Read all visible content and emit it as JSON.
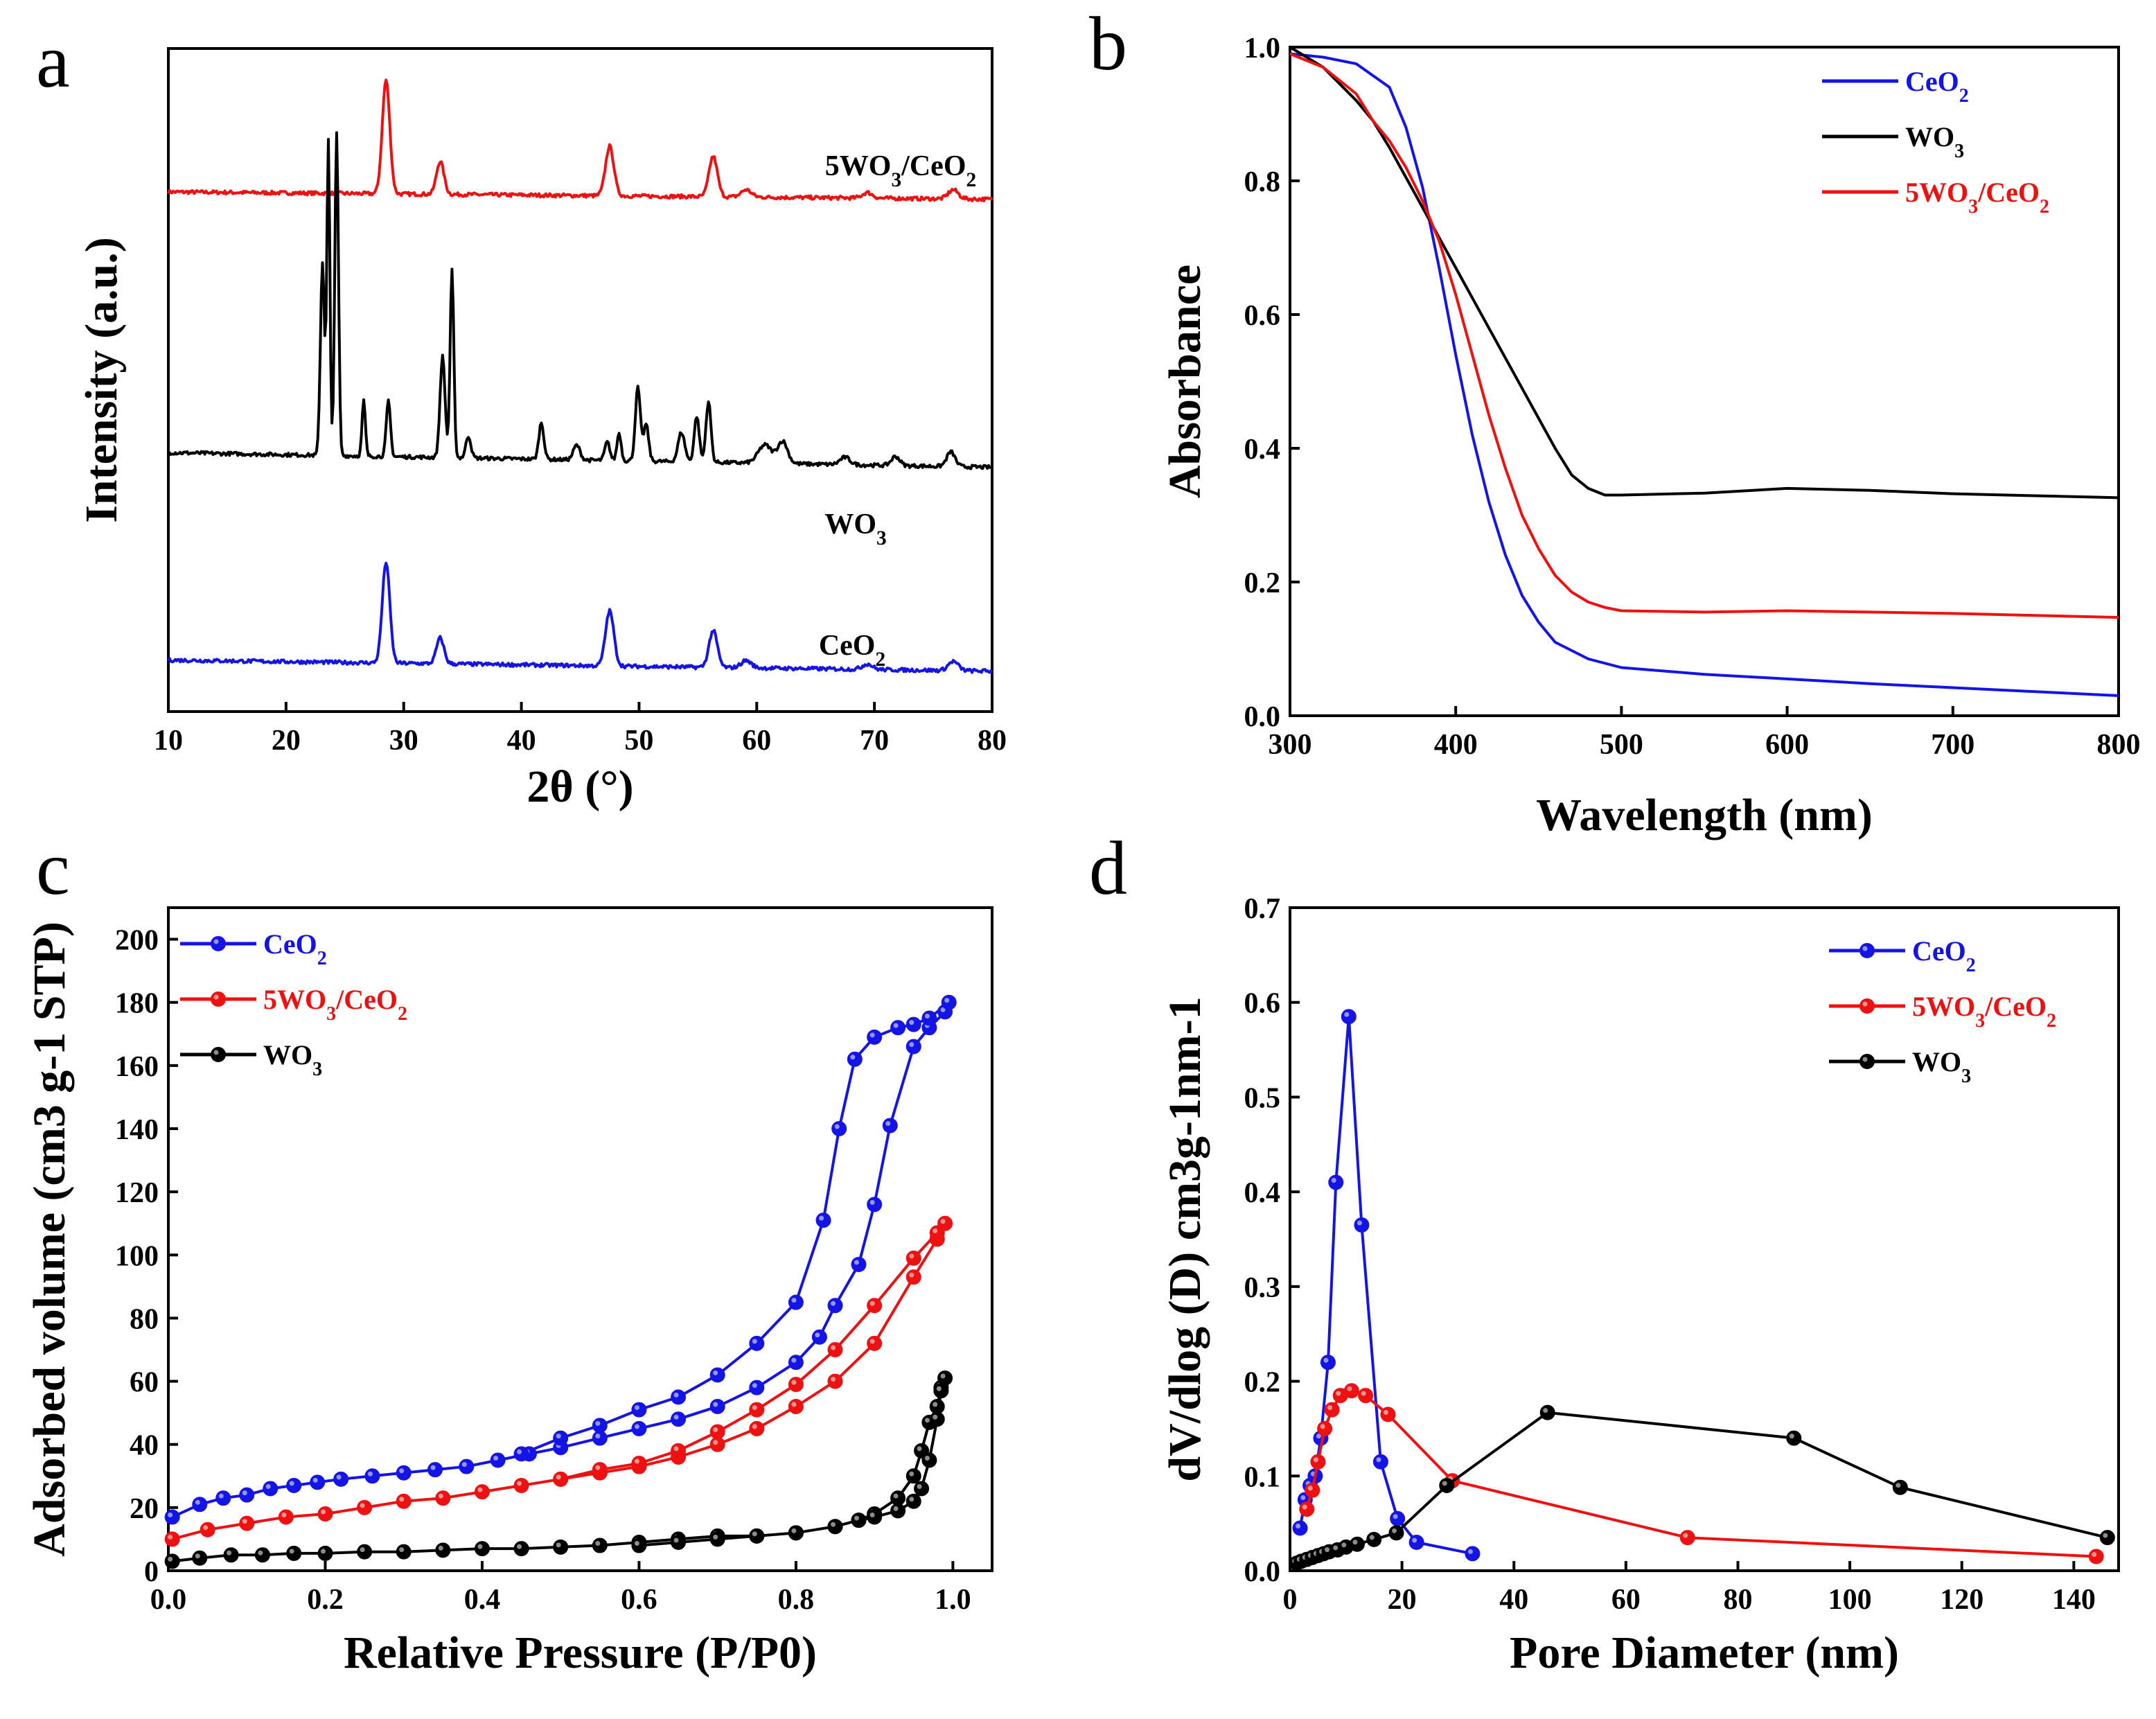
{
  "colors": {
    "ceo2": "#1414e6",
    "wo3": "#000000",
    "composite": "#ee1111"
  },
  "chart_data": [
    {
      "panel": "a",
      "type": "line",
      "title": "",
      "xlabel": "2θ (°)",
      "ylabel": "Intensity (a.u.)",
      "xlim": [
        10,
        80
      ],
      "xticks": [
        10,
        20,
        30,
        40,
        50,
        60,
        70,
        80
      ],
      "yticks": [],
      "series": [
        {
          "name": "5WO3/CeO2",
          "label_parts": [
            "5WO",
            "3",
            "/CeO",
            "2"
          ],
          "color_key": "composite",
          "offset": 2.45,
          "peaks": [
            [
              28.5,
              0.62,
              0.45
            ],
            [
              33.1,
              0.18,
              0.45
            ],
            [
              47.5,
              0.27,
              0.5
            ],
            [
              56.3,
              0.22,
              0.5
            ],
            [
              59.1,
              0.04,
              0.6
            ],
            [
              69.4,
              0.03,
              0.6
            ],
            [
              76.7,
              0.05,
              0.6
            ]
          ],
          "baseline": [
            0.12,
            0.08
          ]
        },
        {
          "name": "WO3",
          "label_parts": [
            "WO",
            "3"
          ],
          "color_key": "wo3",
          "offset": 1.05,
          "peaks": [
            [
              23.1,
              1.05,
              0.25
            ],
            [
              23.6,
              1.7,
              0.18
            ],
            [
              24.3,
              1.75,
              0.22
            ],
            [
              26.6,
              0.3,
              0.2
            ],
            [
              28.7,
              0.3,
              0.25
            ],
            [
              33.3,
              0.55,
              0.3
            ],
            [
              34.1,
              1.02,
              0.22
            ],
            [
              35.5,
              0.12,
              0.3
            ],
            [
              41.7,
              0.2,
              0.3
            ],
            [
              44.7,
              0.08,
              0.4
            ],
            [
              47.3,
              0.1,
              0.3
            ],
            [
              48.3,
              0.15,
              0.25
            ],
            [
              49.9,
              0.4,
              0.3
            ],
            [
              50.6,
              0.2,
              0.3
            ],
            [
              53.6,
              0.16,
              0.4
            ],
            [
              54.9,
              0.25,
              0.3
            ],
            [
              55.9,
              0.33,
              0.3
            ],
            [
              60.7,
              0.1,
              0.8
            ],
            [
              62.2,
              0.12,
              0.6
            ],
            [
              67.5,
              0.04,
              0.6
            ],
            [
              71.8,
              0.05,
              0.5
            ],
            [
              76.5,
              0.08,
              0.5
            ]
          ],
          "baseline": [
            0.1,
            0.02
          ]
        },
        {
          "name": "CeO2",
          "label_parts": [
            "CeO",
            "2"
          ],
          "color_key": "ceo2",
          "offset": 0.0,
          "peaks": [
            [
              28.5,
              0.55,
              0.45
            ],
            [
              33.1,
              0.14,
              0.45
            ],
            [
              47.5,
              0.3,
              0.5
            ],
            [
              56.3,
              0.2,
              0.5
            ],
            [
              59.1,
              0.04,
              0.6
            ],
            [
              69.4,
              0.03,
              0.6
            ],
            [
              76.7,
              0.05,
              0.6
            ]
          ],
          "baseline": [
            0.02,
            -0.04
          ]
        }
      ]
    },
    {
      "panel": "b",
      "type": "line",
      "xlabel": "Wavelength (nm)",
      "ylabel": "Absorbance",
      "xlim": [
        300,
        800
      ],
      "ylim": [
        0,
        1.0
      ],
      "xticks": [
        300,
        400,
        500,
        600,
        700,
        800
      ],
      "yticks": [
        "0.0",
        "0.2",
        "0.4",
        "0.6",
        "0.8",
        "1.0"
      ],
      "legend": "top-right",
      "series": [
        {
          "name": "CeO2",
          "label_parts": [
            "CeO",
            "2"
          ],
          "color_key": "ceo2",
          "x": [
            300,
            320,
            340,
            360,
            370,
            380,
            390,
            400,
            410,
            420,
            430,
            440,
            450,
            460,
            480,
            500,
            550,
            600,
            650,
            700,
            750,
            800
          ],
          "y": [
            0.99,
            0.985,
            0.975,
            0.94,
            0.88,
            0.79,
            0.67,
            0.54,
            0.42,
            0.32,
            0.24,
            0.18,
            0.14,
            0.11,
            0.085,
            0.072,
            0.062,
            0.055,
            0.048,
            0.042,
            0.036,
            0.03
          ]
        },
        {
          "name": "WO3",
          "label_parts": [
            "WO",
            "3"
          ],
          "color_key": "wo3",
          "x": [
            300,
            320,
            340,
            350,
            360,
            380,
            400,
            420,
            440,
            460,
            470,
            480,
            490,
            500,
            550,
            600,
            650,
            700,
            750,
            800
          ],
          "y": [
            1.0,
            0.97,
            0.92,
            0.89,
            0.85,
            0.76,
            0.67,
            0.58,
            0.49,
            0.4,
            0.36,
            0.34,
            0.33,
            0.33,
            0.333,
            0.34,
            0.337,
            0.332,
            0.329,
            0.326
          ]
        },
        {
          "name": "5WO3/CeO2",
          "label_parts": [
            "5WO",
            "3",
            "/CeO",
            "2"
          ],
          "color_key": "composite",
          "x": [
            300,
            320,
            340,
            350,
            360,
            370,
            380,
            390,
            400,
            410,
            420,
            430,
            440,
            450,
            460,
            470,
            480,
            490,
            500,
            550,
            600,
            650,
            700,
            750,
            800
          ],
          "y": [
            0.99,
            0.97,
            0.93,
            0.89,
            0.86,
            0.82,
            0.77,
            0.71,
            0.63,
            0.54,
            0.45,
            0.37,
            0.3,
            0.25,
            0.21,
            0.185,
            0.17,
            0.162,
            0.157,
            0.155,
            0.157,
            0.155,
            0.153,
            0.15,
            0.147
          ]
        }
      ]
    },
    {
      "panel": "c",
      "type": "line",
      "xlabel": "Relative Pressure (P/P0)",
      "ylabel": "Adsorbed volume (cm3 g-1 STP)",
      "xlim": [
        0,
        1.05
      ],
      "ylim": [
        0,
        210
      ],
      "xticks": [
        "0.0",
        "0.2",
        "0.4",
        "0.6",
        "0.8",
        "1.0"
      ],
      "yticks": [
        0,
        20,
        40,
        60,
        80,
        100,
        120,
        140,
        160,
        180,
        200
      ],
      "legend": "top-left",
      "series": [
        {
          "name": "CeO2",
          "label_parts": [
            "CeO",
            "2"
          ],
          "color_key": "ceo2",
          "x": [
            0.005,
            0.04,
            0.07,
            0.1,
            0.13,
            0.16,
            0.19,
            0.22,
            0.26,
            0.3,
            0.34,
            0.38,
            0.42,
            0.46,
            0.5,
            0.55,
            0.6,
            0.65,
            0.7,
            0.75,
            0.8,
            0.83,
            0.85,
            0.88,
            0.9,
            0.92,
            0.95,
            0.97,
            0.99,
            0.995,
            0.97,
            0.95,
            0.93,
            0.9,
            0.875,
            0.855,
            0.835,
            0.8,
            0.75,
            0.7,
            0.65,
            0.6,
            0.55,
            0.5,
            0.45
          ],
          "y": [
            17,
            21,
            23,
            24,
            26,
            27,
            28,
            29,
            30,
            31,
            32,
            33,
            35,
            37,
            39,
            42,
            45,
            48,
            52,
            58,
            66,
            74,
            84,
            97,
            116,
            141,
            166,
            172,
            177,
            180,
            175,
            173,
            172,
            169,
            162,
            140,
            111,
            85,
            72,
            62,
            55,
            51,
            46,
            42,
            37
          ]
        },
        {
          "name": "5WO3/CeO2",
          "label_parts": [
            "5WO",
            "3",
            "/CeO",
            "2"
          ],
          "color_key": "composite",
          "x": [
            0.005,
            0.05,
            0.1,
            0.15,
            0.2,
            0.25,
            0.3,
            0.35,
            0.4,
            0.45,
            0.5,
            0.55,
            0.6,
            0.65,
            0.7,
            0.75,
            0.8,
            0.85,
            0.9,
            0.95,
            0.98,
            0.99,
            0.98,
            0.95,
            0.9,
            0.85,
            0.8,
            0.75,
            0.7,
            0.65,
            0.6,
            0.55,
            0.5
          ],
          "y": [
            10,
            13,
            15,
            17,
            18,
            20,
            22,
            23,
            25,
            27,
            29,
            31,
            33,
            36,
            40,
            45,
            52,
            60,
            72,
            93,
            105,
            110,
            107,
            99,
            84,
            70,
            59,
            51,
            44,
            38,
            34,
            32,
            29
          ]
        },
        {
          "name": "WO3",
          "label_parts": [
            "WO",
            "3"
          ],
          "color_key": "wo3",
          "x": [
            0.005,
            0.04,
            0.08,
            0.12,
            0.16,
            0.2,
            0.25,
            0.3,
            0.35,
            0.4,
            0.45,
            0.5,
            0.55,
            0.6,
            0.65,
            0.7,
            0.75,
            0.8,
            0.85,
            0.88,
            0.9,
            0.93,
            0.95,
            0.96,
            0.97,
            0.98,
            0.985,
            0.99,
            0.985,
            0.98,
            0.97,
            0.96,
            0.95,
            0.93,
            0.9,
            0.88,
            0.85,
            0.8,
            0.75,
            0.7,
            0.65,
            0.6
          ],
          "y": [
            3,
            4,
            5,
            5,
            5.5,
            5.5,
            6,
            6,
            6.5,
            7,
            7,
            7.5,
            8,
            9,
            10,
            11,
            11,
            12,
            14,
            16,
            18,
            23,
            30,
            38,
            47,
            52,
            58,
            61,
            57,
            48,
            35,
            26,
            22,
            19,
            17,
            16,
            14,
            12,
            11,
            10,
            9,
            8
          ]
        }
      ]
    },
    {
      "panel": "d",
      "type": "line",
      "xlabel": "Pore Diameter (nm)",
      "ylabel": "dV/dlog (D) cm3g-1nm-1",
      "xlim": [
        0,
        148
      ],
      "ylim": [
        0,
        0.7
      ],
      "xticks": [
        0,
        20,
        40,
        60,
        80,
        100,
        120,
        140
      ],
      "yticks": [
        "0.0",
        "0.1",
        "0.2",
        "0.3",
        "0.4",
        "0.5",
        "0.6",
        "0.7"
      ],
      "legend": "top-right",
      "series": [
        {
          "name": "CeO2",
          "label_parts": [
            "CeO",
            "2"
          ],
          "color_key": "ceo2",
          "x": [
            1.8,
            2.7,
            3.6,
            4.5,
            5.5,
            6.8,
            8.2,
            10.5,
            12.8,
            16.2,
            19.2,
            22.6,
            32.6
          ],
          "y": [
            0.045,
            0.075,
            0.09,
            0.1,
            0.14,
            0.22,
            0.41,
            0.585,
            0.365,
            0.115,
            0.055,
            0.03,
            0.018
          ]
        },
        {
          "name": "5WO3/CeO2",
          "label_parts": [
            "5WO",
            "3",
            "/CeO",
            "2"
          ],
          "color_key": "composite",
          "x": [
            3.0,
            4.0,
            5.0,
            6.2,
            7.5,
            9.0,
            11.0,
            13.5,
            17.5,
            29.0,
            71.0,
            144.0
          ],
          "y": [
            0.065,
            0.085,
            0.115,
            0.15,
            0.17,
            0.185,
            0.19,
            0.185,
            0.165,
            0.095,
            0.035,
            0.015
          ]
        },
        {
          "name": "WO3",
          "label_parts": [
            "WO",
            "3"
          ],
          "color_key": "wo3",
          "x": [
            1.2,
            2.0,
            3.0,
            4.0,
            5.0,
            6.0,
            7.0,
            8.5,
            10.0,
            12.0,
            15.0,
            19.0,
            28.0,
            46.0,
            90.0,
            109.0,
            146.0
          ],
          "y": [
            0.008,
            0.01,
            0.012,
            0.014,
            0.016,
            0.018,
            0.02,
            0.022,
            0.025,
            0.028,
            0.033,
            0.04,
            0.09,
            0.167,
            0.14,
            0.088,
            0.035
          ]
        }
      ]
    }
  ]
}
